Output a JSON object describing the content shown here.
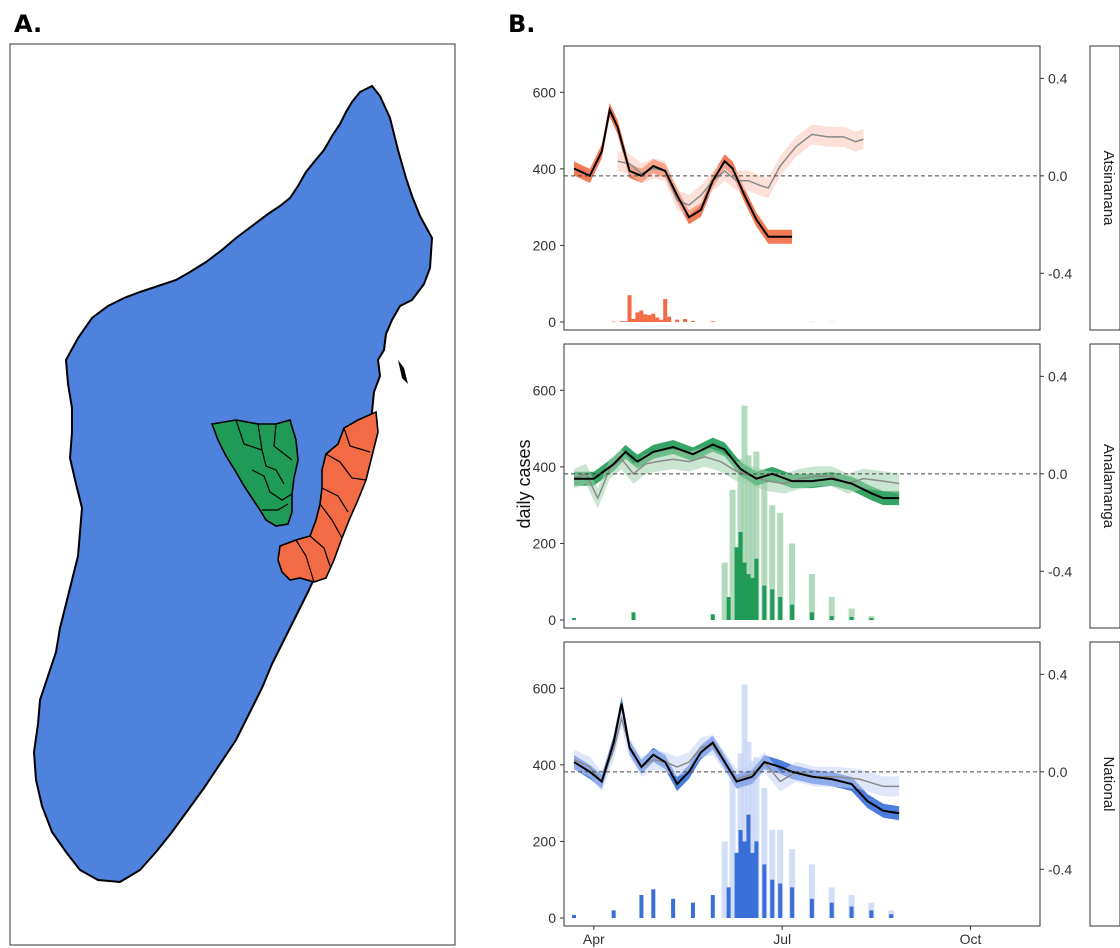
{
  "panel_a_label": "A.",
  "panel_b_label": "B.",
  "colors": {
    "country": "#4e82dd",
    "analamanga": "#1f9b57",
    "atsinanana": "#f26b45",
    "national_line": "#3a6fd8",
    "black_line": "#000000",
    "grey_line": "#8a8a8a"
  },
  "chart_data": {
    "type": "area",
    "ylabel": "daily cases",
    "x_ticks": [
      "Apr",
      "Jul",
      "Oct"
    ],
    "y_left_ticks": [
      0,
      200,
      400,
      600
    ],
    "y_right_ticks": [
      "0.4",
      "0.0",
      "-0.4"
    ],
    "ylim_left": [
      0,
      700
    ],
    "ylim_right": [
      -0.6,
      0.5
    ],
    "x_range_days": [
      0,
      230
    ],
    "facets": [
      {
        "name": "Atsinanana",
        "color": "#f26b45",
        "light": "#fbc7b6",
        "black_series": [
          [
            0,
            0.03
          ],
          [
            8,
            0.0
          ],
          [
            14,
            0.1
          ],
          [
            18,
            0.27
          ],
          [
            22,
            0.2
          ],
          [
            28,
            0.02
          ],
          [
            34,
            -0.0
          ],
          [
            40,
            0.04
          ],
          [
            46,
            0.02
          ],
          [
            52,
            -0.08
          ],
          [
            58,
            -0.17
          ],
          [
            64,
            -0.14
          ],
          [
            70,
            -0.02
          ],
          [
            76,
            0.06
          ],
          [
            80,
            0.03
          ],
          [
            86,
            -0.08
          ],
          [
            92,
            -0.18
          ],
          [
            98,
            -0.25
          ],
          [
            110,
            -0.25
          ]
        ],
        "grey_series": [
          [
            22,
            0.06
          ],
          [
            28,
            0.05
          ],
          [
            34,
            0.01
          ],
          [
            40,
            0.03
          ],
          [
            46,
            0.02
          ],
          [
            52,
            -0.1
          ],
          [
            58,
            -0.12
          ],
          [
            64,
            -0.08
          ],
          [
            70,
            -0.02
          ],
          [
            76,
            0.02
          ],
          [
            82,
            -0.02
          ],
          [
            88,
            -0.02
          ],
          [
            94,
            -0.04
          ],
          [
            98,
            -0.05
          ],
          [
            104,
            0.04
          ],
          [
            112,
            0.12
          ],
          [
            120,
            0.17
          ],
          [
            128,
            0.16
          ],
          [
            136,
            0.16
          ],
          [
            142,
            0.14
          ],
          [
            146,
            0.15
          ]
        ],
        "counts": [
          [
            20,
            1
          ],
          [
            24,
            2
          ],
          [
            26,
            2
          ],
          [
            28,
            70
          ],
          [
            30,
            8
          ],
          [
            32,
            25
          ],
          [
            34,
            30
          ],
          [
            36,
            20
          ],
          [
            38,
            18
          ],
          [
            40,
            22
          ],
          [
            42,
            12
          ],
          [
            44,
            6
          ],
          [
            46,
            60
          ],
          [
            48,
            14
          ],
          [
            52,
            6
          ],
          [
            56,
            8
          ],
          [
            60,
            3
          ],
          [
            70,
            2
          ]
        ],
        "counts_light": [
          [
            120,
            1
          ],
          [
            130,
            1
          ]
        ]
      },
      {
        "name": "Analamanga",
        "color": "#1f9b57",
        "light": "#9fd1ad",
        "black_series": [
          [
            0,
            -0.02
          ],
          [
            10,
            -0.02
          ],
          [
            20,
            0.04
          ],
          [
            26,
            0.09
          ],
          [
            32,
            0.05
          ],
          [
            40,
            0.09
          ],
          [
            50,
            0.11
          ],
          [
            60,
            0.08
          ],
          [
            70,
            0.12
          ],
          [
            76,
            0.1
          ],
          [
            84,
            0.02
          ],
          [
            92,
            -0.02
          ],
          [
            100,
            -0.0
          ],
          [
            110,
            -0.03
          ],
          [
            120,
            -0.03
          ],
          [
            130,
            -0.02
          ],
          [
            140,
            -0.04
          ],
          [
            150,
            -0.08
          ],
          [
            156,
            -0.1
          ],
          [
            164,
            -0.1
          ]
        ],
        "grey_series": [
          [
            0,
            -0.02
          ],
          [
            6,
            0.0
          ],
          [
            12,
            -0.1
          ],
          [
            18,
            0.02
          ],
          [
            24,
            0.06
          ],
          [
            30,
            0.0
          ],
          [
            36,
            0.04
          ],
          [
            42,
            0.05
          ],
          [
            50,
            0.06
          ],
          [
            58,
            0.05
          ],
          [
            66,
            0.07
          ],
          [
            74,
            0.05
          ],
          [
            82,
            0.01
          ],
          [
            90,
            -0.01
          ],
          [
            98,
            -0.03
          ],
          [
            106,
            -0.04
          ],
          [
            114,
            -0.02
          ],
          [
            122,
            -0.01
          ],
          [
            130,
            -0.01
          ],
          [
            138,
            -0.04
          ],
          [
            146,
            -0.02
          ],
          [
            156,
            -0.03
          ],
          [
            164,
            -0.04
          ]
        ],
        "counts": [
          [
            0,
            5
          ],
          [
            30,
            20
          ],
          [
            70,
            15
          ],
          [
            78,
            60
          ],
          [
            82,
            190
          ],
          [
            84,
            230
          ],
          [
            86,
            150
          ],
          [
            88,
            120
          ],
          [
            90,
            110
          ],
          [
            92,
            160
          ],
          [
            96,
            90
          ],
          [
            100,
            80
          ],
          [
            104,
            60
          ],
          [
            110,
            40
          ],
          [
            120,
            20
          ],
          [
            130,
            10
          ],
          [
            140,
            8
          ],
          [
            150,
            5
          ]
        ],
        "counts_light": [
          [
            76,
            150
          ],
          [
            80,
            340
          ],
          [
            84,
            420
          ],
          [
            86,
            560
          ],
          [
            88,
            430
          ],
          [
            90,
            360
          ],
          [
            92,
            440
          ],
          [
            96,
            380
          ],
          [
            100,
            300
          ],
          [
            104,
            280
          ],
          [
            110,
            200
          ],
          [
            120,
            120
          ],
          [
            130,
            60
          ],
          [
            140,
            30
          ],
          [
            150,
            10
          ]
        ]
      },
      {
        "name": "National",
        "color": "#3a6fd8",
        "light": "#c7d4f5",
        "black_series": [
          [
            0,
            0.04
          ],
          [
            8,
            0.0
          ],
          [
            14,
            -0.04
          ],
          [
            20,
            0.12
          ],
          [
            24,
            0.28
          ],
          [
            28,
            0.1
          ],
          [
            34,
            0.02
          ],
          [
            40,
            0.07
          ],
          [
            46,
            0.04
          ],
          [
            52,
            -0.05
          ],
          [
            58,
            0.0
          ],
          [
            64,
            0.08
          ],
          [
            70,
            0.12
          ],
          [
            76,
            0.04
          ],
          [
            82,
            -0.04
          ],
          [
            90,
            -0.02
          ],
          [
            96,
            0.04
          ],
          [
            104,
            0.02
          ],
          [
            110,
            0.0
          ],
          [
            120,
            -0.02
          ],
          [
            130,
            -0.03
          ],
          [
            140,
            -0.05
          ],
          [
            148,
            -0.12
          ],
          [
            156,
            -0.16
          ],
          [
            164,
            -0.17
          ]
        ],
        "grey_series": [
          [
            0,
            0.05
          ],
          [
            8,
            0.02
          ],
          [
            14,
            -0.04
          ],
          [
            20,
            0.09
          ],
          [
            24,
            0.22
          ],
          [
            28,
            0.1
          ],
          [
            34,
            0.02
          ],
          [
            40,
            0.05
          ],
          [
            46,
            0.04
          ],
          [
            52,
            0.02
          ],
          [
            58,
            0.04
          ],
          [
            64,
            0.1
          ],
          [
            70,
            0.11
          ],
          [
            76,
            0.04
          ],
          [
            82,
            -0.03
          ],
          [
            90,
            -0.01
          ],
          [
            96,
            0.04
          ],
          [
            104,
            -0.04
          ],
          [
            112,
            0.0
          ],
          [
            122,
            -0.02
          ],
          [
            132,
            -0.02
          ],
          [
            144,
            -0.03
          ],
          [
            156,
            -0.06
          ],
          [
            164,
            -0.06
          ]
        ],
        "counts": [
          [
            0,
            8
          ],
          [
            20,
            20
          ],
          [
            34,
            60
          ],
          [
            40,
            75
          ],
          [
            50,
            50
          ],
          [
            60,
            40
          ],
          [
            70,
            60
          ],
          [
            78,
            80
          ],
          [
            82,
            170
          ],
          [
            84,
            230
          ],
          [
            86,
            200
          ],
          [
            88,
            270
          ],
          [
            90,
            170
          ],
          [
            92,
            200
          ],
          [
            96,
            140
          ],
          [
            100,
            100
          ],
          [
            104,
            90
          ],
          [
            110,
            80
          ],
          [
            120,
            50
          ],
          [
            130,
            40
          ],
          [
            140,
            30
          ],
          [
            150,
            20
          ],
          [
            160,
            10
          ]
        ],
        "counts_light": [
          [
            76,
            200
          ],
          [
            80,
            360
          ],
          [
            84,
            430
          ],
          [
            86,
            610
          ],
          [
            88,
            460
          ],
          [
            90,
            410
          ],
          [
            92,
            420
          ],
          [
            96,
            340
          ],
          [
            100,
            230
          ],
          [
            104,
            230
          ],
          [
            110,
            180
          ],
          [
            120,
            140
          ],
          [
            130,
            80
          ],
          [
            140,
            60
          ],
          [
            150,
            40
          ],
          [
            160,
            20
          ]
        ]
      }
    ]
  }
}
